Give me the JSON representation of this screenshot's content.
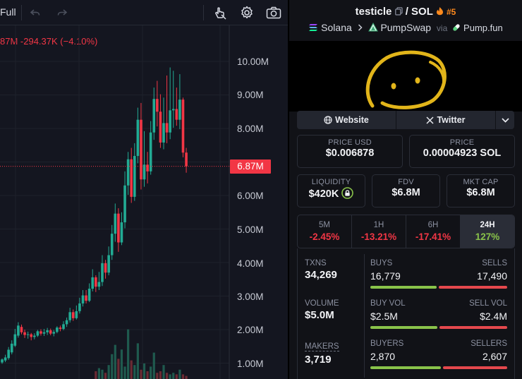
{
  "toolbar": {
    "full_label": "Full",
    "icons": [
      "undo-icon",
      "redo-icon",
      "hand-cursor-icon",
      "gear-icon",
      "camera-icon"
    ]
  },
  "chart": {
    "price_change": "87M  -294.37K (−4.10%)",
    "current_price": "6.87M",
    "y_labels": [
      "10.00M",
      "9.00M",
      "8.00M",
      "6.00M",
      "5.00M",
      "4.00M",
      "3.00M",
      "2.00M",
      "1.00M"
    ],
    "colors": {
      "up": "#22ab94",
      "down": "#f23645"
    }
  },
  "chart_data": {
    "type": "candlestick",
    "ylim": [
      0.7,
      10.6
    ],
    "current_price": 6.87,
    "candles": [
      [
        1.02,
        1.11,
        0.98,
        1.14
      ],
      [
        1.08,
        1.17,
        1.03,
        1.25
      ],
      [
        1.15,
        1.4,
        1.1,
        1.48
      ],
      [
        1.32,
        1.58,
        1.26,
        1.68
      ],
      [
        1.52,
        1.86,
        1.48,
        2.02
      ],
      [
        1.82,
        2.12,
        1.76,
        2.22
      ],
      [
        2.08,
        1.92,
        1.86,
        2.15
      ],
      [
        1.92,
        1.84,
        1.75,
        2.0
      ],
      [
        1.84,
        1.86,
        1.73,
        1.94
      ],
      [
        1.86,
        1.78,
        1.68,
        1.9
      ],
      [
        1.78,
        1.82,
        1.71,
        1.89
      ],
      [
        1.82,
        1.95,
        1.78,
        1.99
      ],
      [
        1.95,
        1.88,
        1.82,
        2.01
      ],
      [
        1.88,
        1.92,
        1.81,
        2.02
      ],
      [
        1.92,
        1.98,
        1.84,
        2.05
      ],
      [
        1.98,
        1.88,
        1.83,
        2.03
      ],
      [
        1.88,
        1.93,
        1.8,
        1.99
      ],
      [
        1.93,
        2.06,
        1.89,
        2.1
      ],
      [
        2.06,
        2.02,
        1.95,
        2.12
      ],
      [
        2.02,
        2.16,
        1.98,
        2.25
      ],
      [
        2.16,
        2.28,
        2.08,
        2.36
      ],
      [
        2.28,
        2.52,
        2.21,
        2.65
      ],
      [
        2.52,
        2.34,
        2.26,
        2.6
      ],
      [
        2.34,
        2.55,
        2.3,
        2.72
      ],
      [
        2.55,
        2.78,
        2.48,
        2.95
      ],
      [
        2.78,
        3.02,
        2.69,
        3.18
      ],
      [
        3.02,
        2.86,
        2.78,
        3.18
      ],
      [
        2.86,
        3.22,
        2.82,
        3.38
      ],
      [
        3.22,
        3.56,
        3.14,
        3.8
      ],
      [
        3.56,
        3.28,
        3.12,
        3.62
      ],
      [
        3.28,
        3.42,
        3.18,
        3.72
      ],
      [
        3.42,
        3.98,
        3.3,
        4.22
      ],
      [
        3.98,
        3.7,
        3.52,
        4.08
      ],
      [
        3.7,
        4.22,
        3.62,
        4.48
      ],
      [
        4.22,
        4.86,
        4.08,
        5.12
      ],
      [
        4.86,
        5.46,
        4.62,
        5.76
      ],
      [
        5.46,
        4.6,
        4.32,
        5.62
      ],
      [
        4.6,
        5.2,
        4.52,
        5.5
      ],
      [
        5.2,
        6.3,
        5.02,
        6.72
      ],
      [
        6.3,
        7.08,
        6.02,
        7.3
      ],
      [
        7.08,
        5.96,
        5.78,
        7.42
      ],
      [
        5.96,
        7.18,
        5.84,
        7.56
      ],
      [
        7.18,
        8.26,
        6.96,
        8.62
      ],
      [
        8.26,
        6.48,
        6.18,
        8.76
      ],
      [
        6.48,
        6.92,
        6.26,
        7.92
      ],
      [
        6.92,
        6.72,
        6.36,
        7.3
      ],
      [
        6.72,
        7.88,
        6.62,
        8.22
      ],
      [
        7.88,
        8.88,
        7.66,
        9.22
      ],
      [
        8.88,
        8.5,
        8.06,
        9.42
      ],
      [
        8.5,
        7.58,
        7.42,
        9.02
      ],
      [
        7.58,
        8.16,
        7.38,
        8.92
      ],
      [
        8.16,
        7.88,
        7.56,
        9.58
      ],
      [
        7.88,
        8.54,
        7.68,
        9.82
      ],
      [
        8.54,
        8.58,
        8.02,
        9.72
      ],
      [
        8.58,
        8.26,
        8.08,
        9.22
      ],
      [
        8.26,
        8.86,
        7.98,
        9.62
      ],
      [
        8.86,
        7.28,
        7.14,
        8.92
      ],
      [
        7.28,
        6.87,
        6.68,
        7.42
      ]
    ],
    "volume": [
      0,
      0,
      0,
      0,
      0,
      0,
      0,
      0,
      0,
      0,
      0,
      0,
      0,
      0,
      0,
      0,
      0,
      0,
      0,
      0,
      0,
      0,
      0,
      0,
      0,
      0,
      0,
      0,
      0,
      0.5,
      0.7,
      0.6,
      0.4,
      0.9,
      1.6,
      2.2,
      1.3,
      1.9,
      0.8,
      3.2,
      1.2,
      0.9,
      2.3,
      0.6,
      1.0,
      0.5,
      0.8,
      1.7,
      0.4,
      0.5,
      0.9,
      0.4,
      0.3,
      0.4,
      0.3,
      0.6,
      0.3,
      0.2
    ],
    "vol_colors": "up green / down red (dimmed)"
  },
  "pair": {
    "base": "testicle",
    "sep": "/",
    "quote": "SOL",
    "rank": "#5",
    "chain": "Solana",
    "dex": "PumpSwap",
    "via_label": "via",
    "launchpad": "Pump.fun"
  },
  "links": {
    "website": "Website",
    "twitter": "Twitter"
  },
  "prices": {
    "usd_label": "PRICE USD",
    "usd_value": "$0.006878",
    "native_label": "PRICE",
    "native_value": "0.00004923 SOL"
  },
  "metrics": {
    "liquidity_label": "LIQUIDITY",
    "liquidity_value": "$420K",
    "fdv_label": "FDV",
    "fdv_value": "$6.8M",
    "mcap_label": "MKT CAP",
    "mcap_value": "$6.8M"
  },
  "timeframes": [
    {
      "label": "5M",
      "value": "-2.45%",
      "color": "#f23645"
    },
    {
      "label": "1H",
      "value": "-13.21%",
      "color": "#f23645"
    },
    {
      "label": "6H",
      "value": "-17.41%",
      "color": "#f23645"
    },
    {
      "label": "24H",
      "value": "127%",
      "color": "#89c34a"
    }
  ],
  "txns": {
    "txns_label": "TXNS",
    "txns_value": "34,269",
    "volume_label": "VOLUME",
    "volume_value": "$5.0M",
    "makers_label": "MAKERS",
    "makers_value": "3,719",
    "buys_label": "BUYS",
    "buys_value": "16,779",
    "sells_label": "SELLS",
    "sells_value": "17,490",
    "buyvol_label": "BUY VOL",
    "buyvol_value": "$2.5M",
    "sellvol_label": "SELL VOL",
    "sellvol_value": "$2.4M",
    "buyers_label": "BUYERS",
    "buyers_value": "2,870",
    "sellers_label": "SELLERS",
    "sellers_value": "2,607"
  }
}
